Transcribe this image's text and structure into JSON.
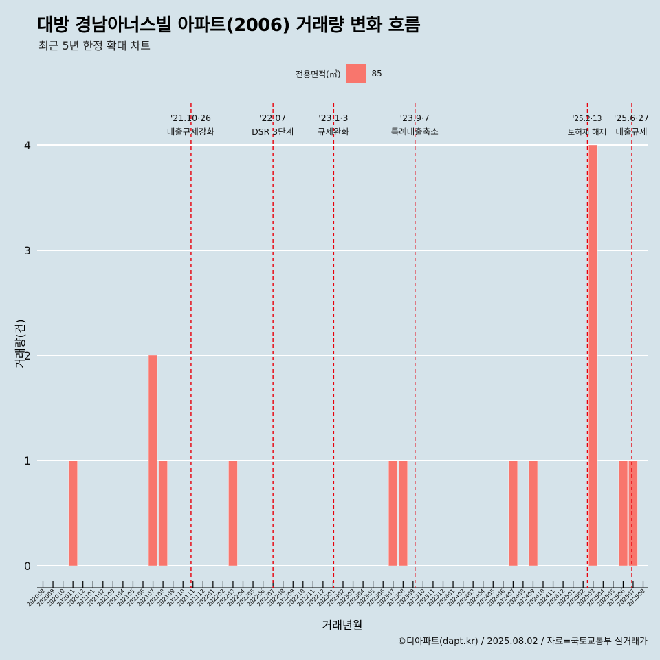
{
  "title": "대방 경남아너스빌 아파트(2006) 거래량 변화 흐름",
  "subtitle": "최근 5년 한정 확대 차트",
  "caption": "©디아파트(dapt.kr) / 2025.08.02 / 자료=국토교통부 실거래가",
  "colors": {
    "background": "#d5e3ea",
    "bar": "#f8766d",
    "grid": "#ffffff",
    "event_line": "#e8000b"
  },
  "chart_data": {
    "type": "bar",
    "xlabel": "거래년월",
    "ylabel": "거래량(건)",
    "legend": {
      "title": "전용면적(㎡)",
      "placement": "top",
      "entries": [
        "85"
      ]
    },
    "ylim": [
      0,
      4
    ],
    "y_ticks": [
      0,
      1,
      2,
      3,
      4
    ],
    "grid": true,
    "categories": [
      "202008",
      "202009",
      "202010",
      "202011",
      "202012",
      "202101",
      "202102",
      "202103",
      "202104",
      "202105",
      "202106",
      "202107",
      "202108",
      "202109",
      "202110",
      "202111",
      "202112",
      "202201",
      "202202",
      "202203",
      "202204",
      "202205",
      "202206",
      "202207",
      "202208",
      "202209",
      "202210",
      "202211",
      "202212",
      "202301",
      "202302",
      "202303",
      "202304",
      "202305",
      "202306",
      "202307",
      "202308",
      "202309",
      "202310",
      "202311",
      "202312",
      "202401",
      "202402",
      "202403",
      "202404",
      "202405",
      "202406",
      "202407",
      "202408",
      "202409",
      "202410",
      "202411",
      "202412",
      "202501",
      "202502",
      "202503",
      "202504",
      "202505",
      "202506",
      "202507",
      "202508"
    ],
    "series": [
      {
        "name": "85",
        "values": [
          0,
          0,
          0,
          1,
          0,
          0,
          0,
          0,
          0,
          0,
          0,
          2,
          1,
          0,
          0,
          0,
          0,
          0,
          0,
          1,
          0,
          0,
          0,
          0,
          0,
          0,
          0,
          0,
          0,
          0,
          0,
          0,
          0,
          0,
          0,
          1,
          1,
          0,
          0,
          0,
          0,
          0,
          0,
          0,
          0,
          0,
          0,
          1,
          0,
          1,
          0,
          0,
          0,
          0,
          0,
          4,
          0,
          0,
          1,
          1,
          0
        ]
      }
    ],
    "events": [
      {
        "date": "2021-10-26",
        "label_date": "'21.10·26",
        "label": "대출규제강화"
      },
      {
        "date": "2022-07-01",
        "label_date": "'22.07",
        "label": "DSR 3단계"
      },
      {
        "date": "2023-01-03",
        "label_date": "'23.1·3",
        "label": "규제완화"
      },
      {
        "date": "2023-09-07",
        "label_date": "'23.9·7",
        "label": "특례대출축소"
      },
      {
        "date": "2025-02-13",
        "label_date": "'25.2·13",
        "label": "토허제 해제"
      },
      {
        "date": "2025-06-27",
        "label_date": "'25.6·27",
        "label": "대출규제"
      }
    ]
  }
}
